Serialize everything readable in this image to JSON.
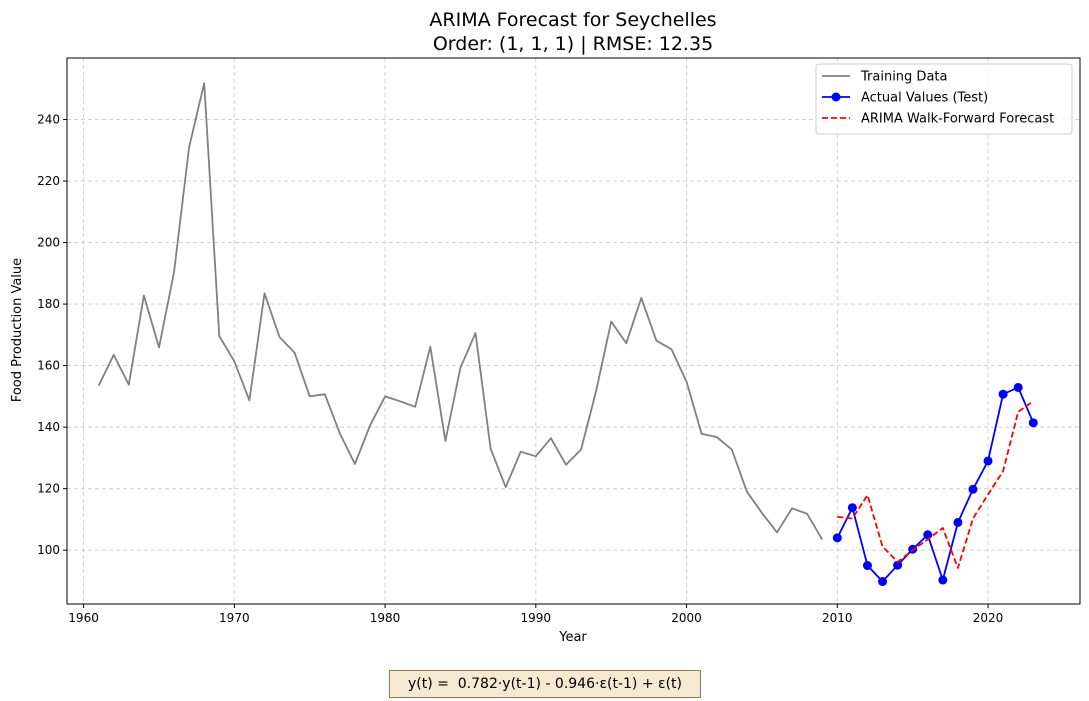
{
  "chart_data": {
    "type": "line",
    "title": "ARIMA Forecast for Seychelles",
    "subtitle": "Order: (1, 1, 1) | RMSE: 12.35",
    "xlabel": "Year",
    "ylabel": "Food Production Value",
    "xlim": [
      1958.9,
      2026.1
    ],
    "ylim": [
      82.5,
      260
    ],
    "x_ticks": [
      1960,
      1970,
      1980,
      1990,
      2000,
      2010,
      2020
    ],
    "y_ticks": [
      100,
      120,
      140,
      160,
      180,
      200,
      220,
      240
    ],
    "grid": true,
    "legend_position": "top-right",
    "series": [
      {
        "name": "Training Data",
        "color": "#808080",
        "style": "solid",
        "x": [
          1961,
          1962,
          1963,
          1964,
          1965,
          1966,
          1967,
          1968,
          1969,
          1970,
          1971,
          1972,
          1973,
          1974,
          1975,
          1976,
          1977,
          1978,
          1979,
          1980,
          1981,
          1982,
          1983,
          1984,
          1985,
          1986,
          1987,
          1988,
          1989,
          1990,
          1991,
          1992,
          1993,
          1994,
          1995,
          1996,
          1997,
          1998,
          1999,
          2000,
          2001,
          2002,
          2003,
          2004,
          2005,
          2006,
          2007,
          2008,
          2009
        ],
        "y": [
          153.5,
          163.5,
          153.8,
          182.8,
          165.9,
          190.3,
          231.0,
          251.8,
          169.6,
          161.4,
          148.7,
          183.5,
          169.3,
          164.2,
          150.0,
          150.7,
          138.0,
          128.0,
          140.5,
          150.0,
          148.4,
          146.6,
          166.1,
          135.5,
          159.3,
          170.6,
          133.0,
          120.5,
          132.0,
          130.5,
          136.4,
          127.8,
          132.7,
          151.7,
          174.3,
          167.3,
          182.0,
          168.1,
          165.3,
          154.7,
          137.8,
          136.8,
          132.7,
          119.0,
          112.1,
          105.8,
          113.6,
          111.8,
          103.5
        ]
      },
      {
        "name": "Actual Values (Test)",
        "color": "#0000ff",
        "style": "solid-markers",
        "x": [
          2010,
          2011,
          2012,
          2013,
          2014,
          2015,
          2016,
          2017,
          2018,
          2019,
          2020,
          2021,
          2022,
          2023
        ],
        "y": [
          104.0,
          113.8,
          95.0,
          89.8,
          95.1,
          100.3,
          105.0,
          90.3,
          109.0,
          119.8,
          129.0,
          150.7,
          152.9,
          141.4
        ]
      },
      {
        "name": "ARIMA Walk-Forward Forecast",
        "color": "#ff0000",
        "style": "dashed",
        "x": [
          2010,
          2011,
          2012,
          2013,
          2014,
          2015,
          2016,
          2017,
          2018,
          2019,
          2020,
          2021,
          2022,
          2023
        ],
        "y": [
          110.8,
          110.3,
          117.9,
          101.2,
          96.2,
          100.0,
          103.5,
          107.2,
          94.2,
          110.3,
          118.1,
          125.7,
          145.0,
          148.4
        ]
      }
    ],
    "annotation": "y(t) =  0.782·y(t-1) - 0.946·ε(t-1) + ε(t)"
  }
}
